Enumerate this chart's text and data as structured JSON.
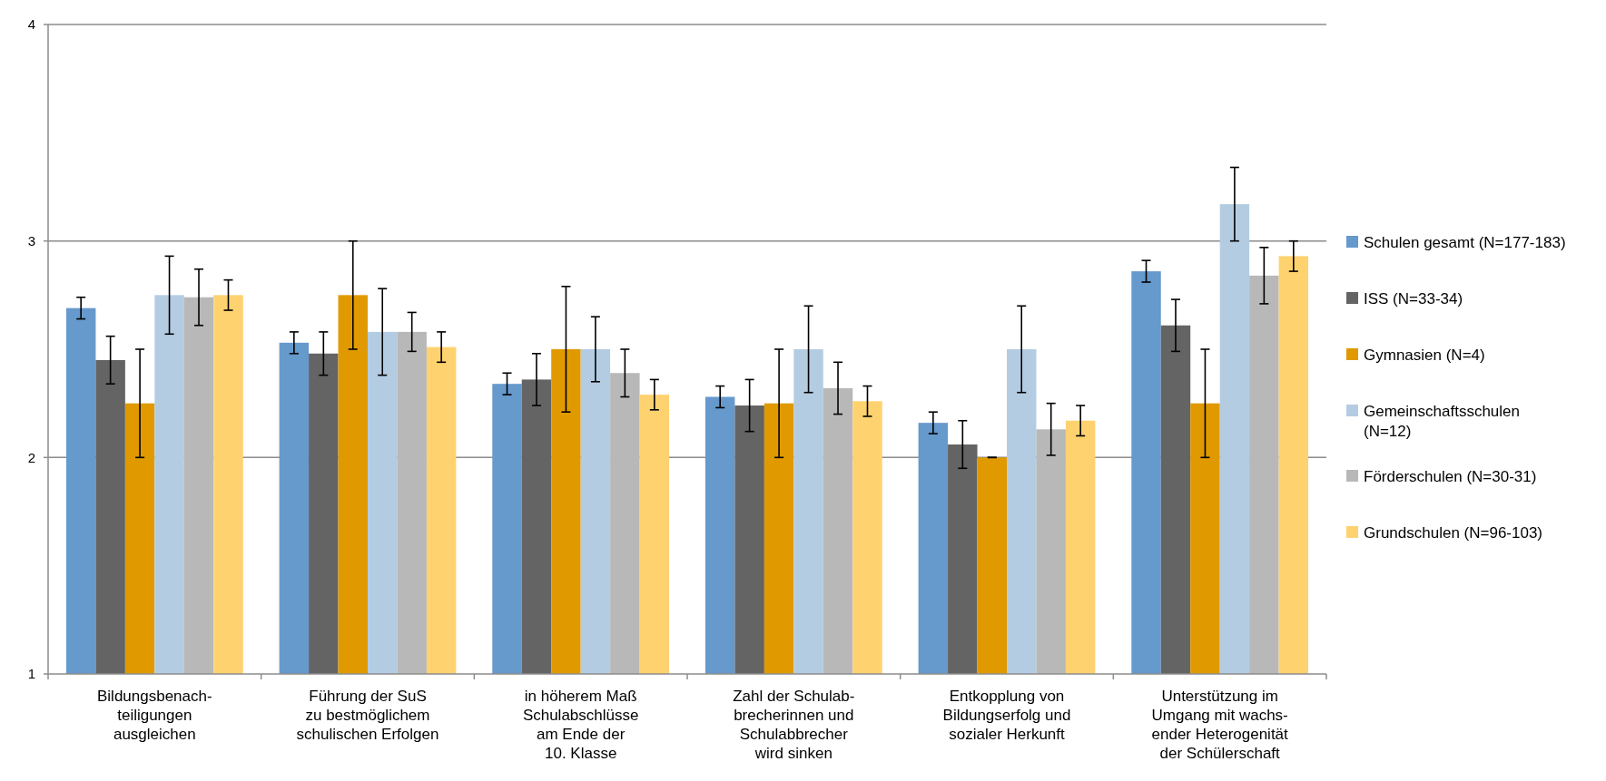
{
  "chart_data": {
    "type": "bar",
    "categories": [
      "Bildungsbenach-\nteiligungen\nausgleichen",
      "Führung der SuS\nzu bestmöglichem\nschulischen Erfolgen",
      "in höherem Maß\nSchulabschlüsse\nam Ende der\n10. Klasse",
      "Zahl der Schulab-\nbrecherinnen und\nSchulabbrecher\nwird sinken",
      "Entkopplung von\nBildungserfolg und\nsozialer Herkunft",
      "Unterstützung im\nUmgang mit wachs-\nender Heterogenität\nder Schülerschaft"
    ],
    "series": [
      {
        "name": "Schulen gesamt (N=177-183)",
        "color": "#6699cc",
        "values": [
          2.69,
          2.53,
          2.34,
          2.28,
          2.16,
          2.86
        ],
        "errors": [
          0.05,
          0.05,
          0.05,
          0.05,
          0.05,
          0.05
        ]
      },
      {
        "name": "ISS (N=33-34)",
        "color": "#646464",
        "values": [
          2.45,
          2.48,
          2.36,
          2.24,
          2.06,
          2.61
        ],
        "errors": [
          0.11,
          0.1,
          0.12,
          0.12,
          0.11,
          0.12
        ]
      },
      {
        "name": "Gymnasien (N=4)",
        "color": "#e09a00",
        "values": [
          2.25,
          2.75,
          2.5,
          2.25,
          2.0,
          2.25
        ],
        "errors": [
          0.25,
          0.25,
          0.29,
          0.25,
          0,
          0.25
        ]
      },
      {
        "name": "Gemeinschaftsschulen (N=12)",
        "color": "#b4cce2",
        "values": [
          2.75,
          2.58,
          2.5,
          2.5,
          2.5,
          3.17
        ],
        "errors": [
          0.18,
          0.2,
          0.15,
          0.2,
          0.2,
          0.17
        ]
      },
      {
        "name": "Förderschulen (N=30-31)",
        "color": "#b8b8b8",
        "values": [
          2.74,
          2.58,
          2.39,
          2.32,
          2.13,
          2.84
        ],
        "errors": [
          0.13,
          0.09,
          0.11,
          0.12,
          0.12,
          0.13
        ]
      },
      {
        "name": "Grundschulen (N=96-103)",
        "color": "#ffd270",
        "values": [
          2.75,
          2.51,
          2.29,
          2.26,
          2.17,
          2.93
        ],
        "errors": [
          0.07,
          0.07,
          0.07,
          0.07,
          0.07,
          0.07
        ]
      }
    ],
    "ylim": [
      1,
      4
    ],
    "yticks": [
      1,
      2,
      3,
      4
    ],
    "grid": "y",
    "legend": "right"
  }
}
